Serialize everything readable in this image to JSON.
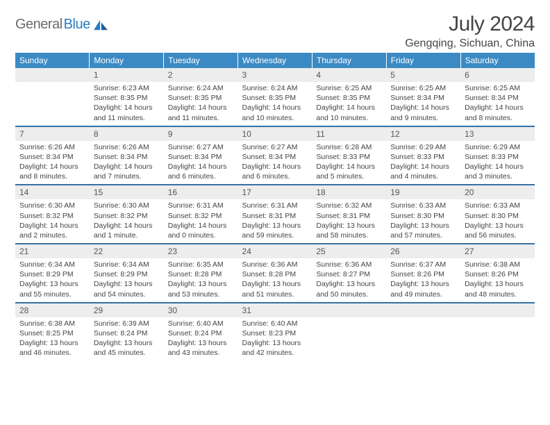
{
  "brand": {
    "word1": "General",
    "word2": "Blue",
    "logo_color": "#2a7cc7",
    "text_color": "#6b6b6b"
  },
  "header": {
    "title": "July 2024",
    "location": "Gengqing, Sichuan, China"
  },
  "style": {
    "header_bg": "#3b8ac4",
    "header_fg": "#ffffff",
    "daynum_bg": "#ededed",
    "rule_color": "#3571a3",
    "body_fg": "#444444",
    "font_family": "Arial, Helvetica, sans-serif",
    "title_fontsize": 30,
    "location_fontsize": 16,
    "dayname_fontsize": 12,
    "detail_fontsize": 10.5
  },
  "daynames": [
    "Sunday",
    "Monday",
    "Tuesday",
    "Wednesday",
    "Thursday",
    "Friday",
    "Saturday"
  ],
  "weeks": [
    [
      null,
      {
        "d": "1",
        "sr": "Sunrise: 6:23 AM",
        "ss": "Sunset: 8:35 PM",
        "dl": "Daylight: 14 hours and 11 minutes."
      },
      {
        "d": "2",
        "sr": "Sunrise: 6:24 AM",
        "ss": "Sunset: 8:35 PM",
        "dl": "Daylight: 14 hours and 11 minutes."
      },
      {
        "d": "3",
        "sr": "Sunrise: 6:24 AM",
        "ss": "Sunset: 8:35 PM",
        "dl": "Daylight: 14 hours and 10 minutes."
      },
      {
        "d": "4",
        "sr": "Sunrise: 6:25 AM",
        "ss": "Sunset: 8:35 PM",
        "dl": "Daylight: 14 hours and 10 minutes."
      },
      {
        "d": "5",
        "sr": "Sunrise: 6:25 AM",
        "ss": "Sunset: 8:34 PM",
        "dl": "Daylight: 14 hours and 9 minutes."
      },
      {
        "d": "6",
        "sr": "Sunrise: 6:25 AM",
        "ss": "Sunset: 8:34 PM",
        "dl": "Daylight: 14 hours and 8 minutes."
      }
    ],
    [
      {
        "d": "7",
        "sr": "Sunrise: 6:26 AM",
        "ss": "Sunset: 8:34 PM",
        "dl": "Daylight: 14 hours and 8 minutes."
      },
      {
        "d": "8",
        "sr": "Sunrise: 6:26 AM",
        "ss": "Sunset: 8:34 PM",
        "dl": "Daylight: 14 hours and 7 minutes."
      },
      {
        "d": "9",
        "sr": "Sunrise: 6:27 AM",
        "ss": "Sunset: 8:34 PM",
        "dl": "Daylight: 14 hours and 6 minutes."
      },
      {
        "d": "10",
        "sr": "Sunrise: 6:27 AM",
        "ss": "Sunset: 8:34 PM",
        "dl": "Daylight: 14 hours and 6 minutes."
      },
      {
        "d": "11",
        "sr": "Sunrise: 6:28 AM",
        "ss": "Sunset: 8:33 PM",
        "dl": "Daylight: 14 hours and 5 minutes."
      },
      {
        "d": "12",
        "sr": "Sunrise: 6:29 AM",
        "ss": "Sunset: 8:33 PM",
        "dl": "Daylight: 14 hours and 4 minutes."
      },
      {
        "d": "13",
        "sr": "Sunrise: 6:29 AM",
        "ss": "Sunset: 8:33 PM",
        "dl": "Daylight: 14 hours and 3 minutes."
      }
    ],
    [
      {
        "d": "14",
        "sr": "Sunrise: 6:30 AM",
        "ss": "Sunset: 8:32 PM",
        "dl": "Daylight: 14 hours and 2 minutes."
      },
      {
        "d": "15",
        "sr": "Sunrise: 6:30 AM",
        "ss": "Sunset: 8:32 PM",
        "dl": "Daylight: 14 hours and 1 minute."
      },
      {
        "d": "16",
        "sr": "Sunrise: 6:31 AM",
        "ss": "Sunset: 8:32 PM",
        "dl": "Daylight: 14 hours and 0 minutes."
      },
      {
        "d": "17",
        "sr": "Sunrise: 6:31 AM",
        "ss": "Sunset: 8:31 PM",
        "dl": "Daylight: 13 hours and 59 minutes."
      },
      {
        "d": "18",
        "sr": "Sunrise: 6:32 AM",
        "ss": "Sunset: 8:31 PM",
        "dl": "Daylight: 13 hours and 58 minutes."
      },
      {
        "d": "19",
        "sr": "Sunrise: 6:33 AM",
        "ss": "Sunset: 8:30 PM",
        "dl": "Daylight: 13 hours and 57 minutes."
      },
      {
        "d": "20",
        "sr": "Sunrise: 6:33 AM",
        "ss": "Sunset: 8:30 PM",
        "dl": "Daylight: 13 hours and 56 minutes."
      }
    ],
    [
      {
        "d": "21",
        "sr": "Sunrise: 6:34 AM",
        "ss": "Sunset: 8:29 PM",
        "dl": "Daylight: 13 hours and 55 minutes."
      },
      {
        "d": "22",
        "sr": "Sunrise: 6:34 AM",
        "ss": "Sunset: 8:29 PM",
        "dl": "Daylight: 13 hours and 54 minutes."
      },
      {
        "d": "23",
        "sr": "Sunrise: 6:35 AM",
        "ss": "Sunset: 8:28 PM",
        "dl": "Daylight: 13 hours and 53 minutes."
      },
      {
        "d": "24",
        "sr": "Sunrise: 6:36 AM",
        "ss": "Sunset: 8:28 PM",
        "dl": "Daylight: 13 hours and 51 minutes."
      },
      {
        "d": "25",
        "sr": "Sunrise: 6:36 AM",
        "ss": "Sunset: 8:27 PM",
        "dl": "Daylight: 13 hours and 50 minutes."
      },
      {
        "d": "26",
        "sr": "Sunrise: 6:37 AM",
        "ss": "Sunset: 8:26 PM",
        "dl": "Daylight: 13 hours and 49 minutes."
      },
      {
        "d": "27",
        "sr": "Sunrise: 6:38 AM",
        "ss": "Sunset: 8:26 PM",
        "dl": "Daylight: 13 hours and 48 minutes."
      }
    ],
    [
      {
        "d": "28",
        "sr": "Sunrise: 6:38 AM",
        "ss": "Sunset: 8:25 PM",
        "dl": "Daylight: 13 hours and 46 minutes."
      },
      {
        "d": "29",
        "sr": "Sunrise: 6:39 AM",
        "ss": "Sunset: 8:24 PM",
        "dl": "Daylight: 13 hours and 45 minutes."
      },
      {
        "d": "30",
        "sr": "Sunrise: 6:40 AM",
        "ss": "Sunset: 8:24 PM",
        "dl": "Daylight: 13 hours and 43 minutes."
      },
      {
        "d": "31",
        "sr": "Sunrise: 6:40 AM",
        "ss": "Sunset: 8:23 PM",
        "dl": "Daylight: 13 hours and 42 minutes."
      },
      null,
      null,
      null
    ]
  ]
}
